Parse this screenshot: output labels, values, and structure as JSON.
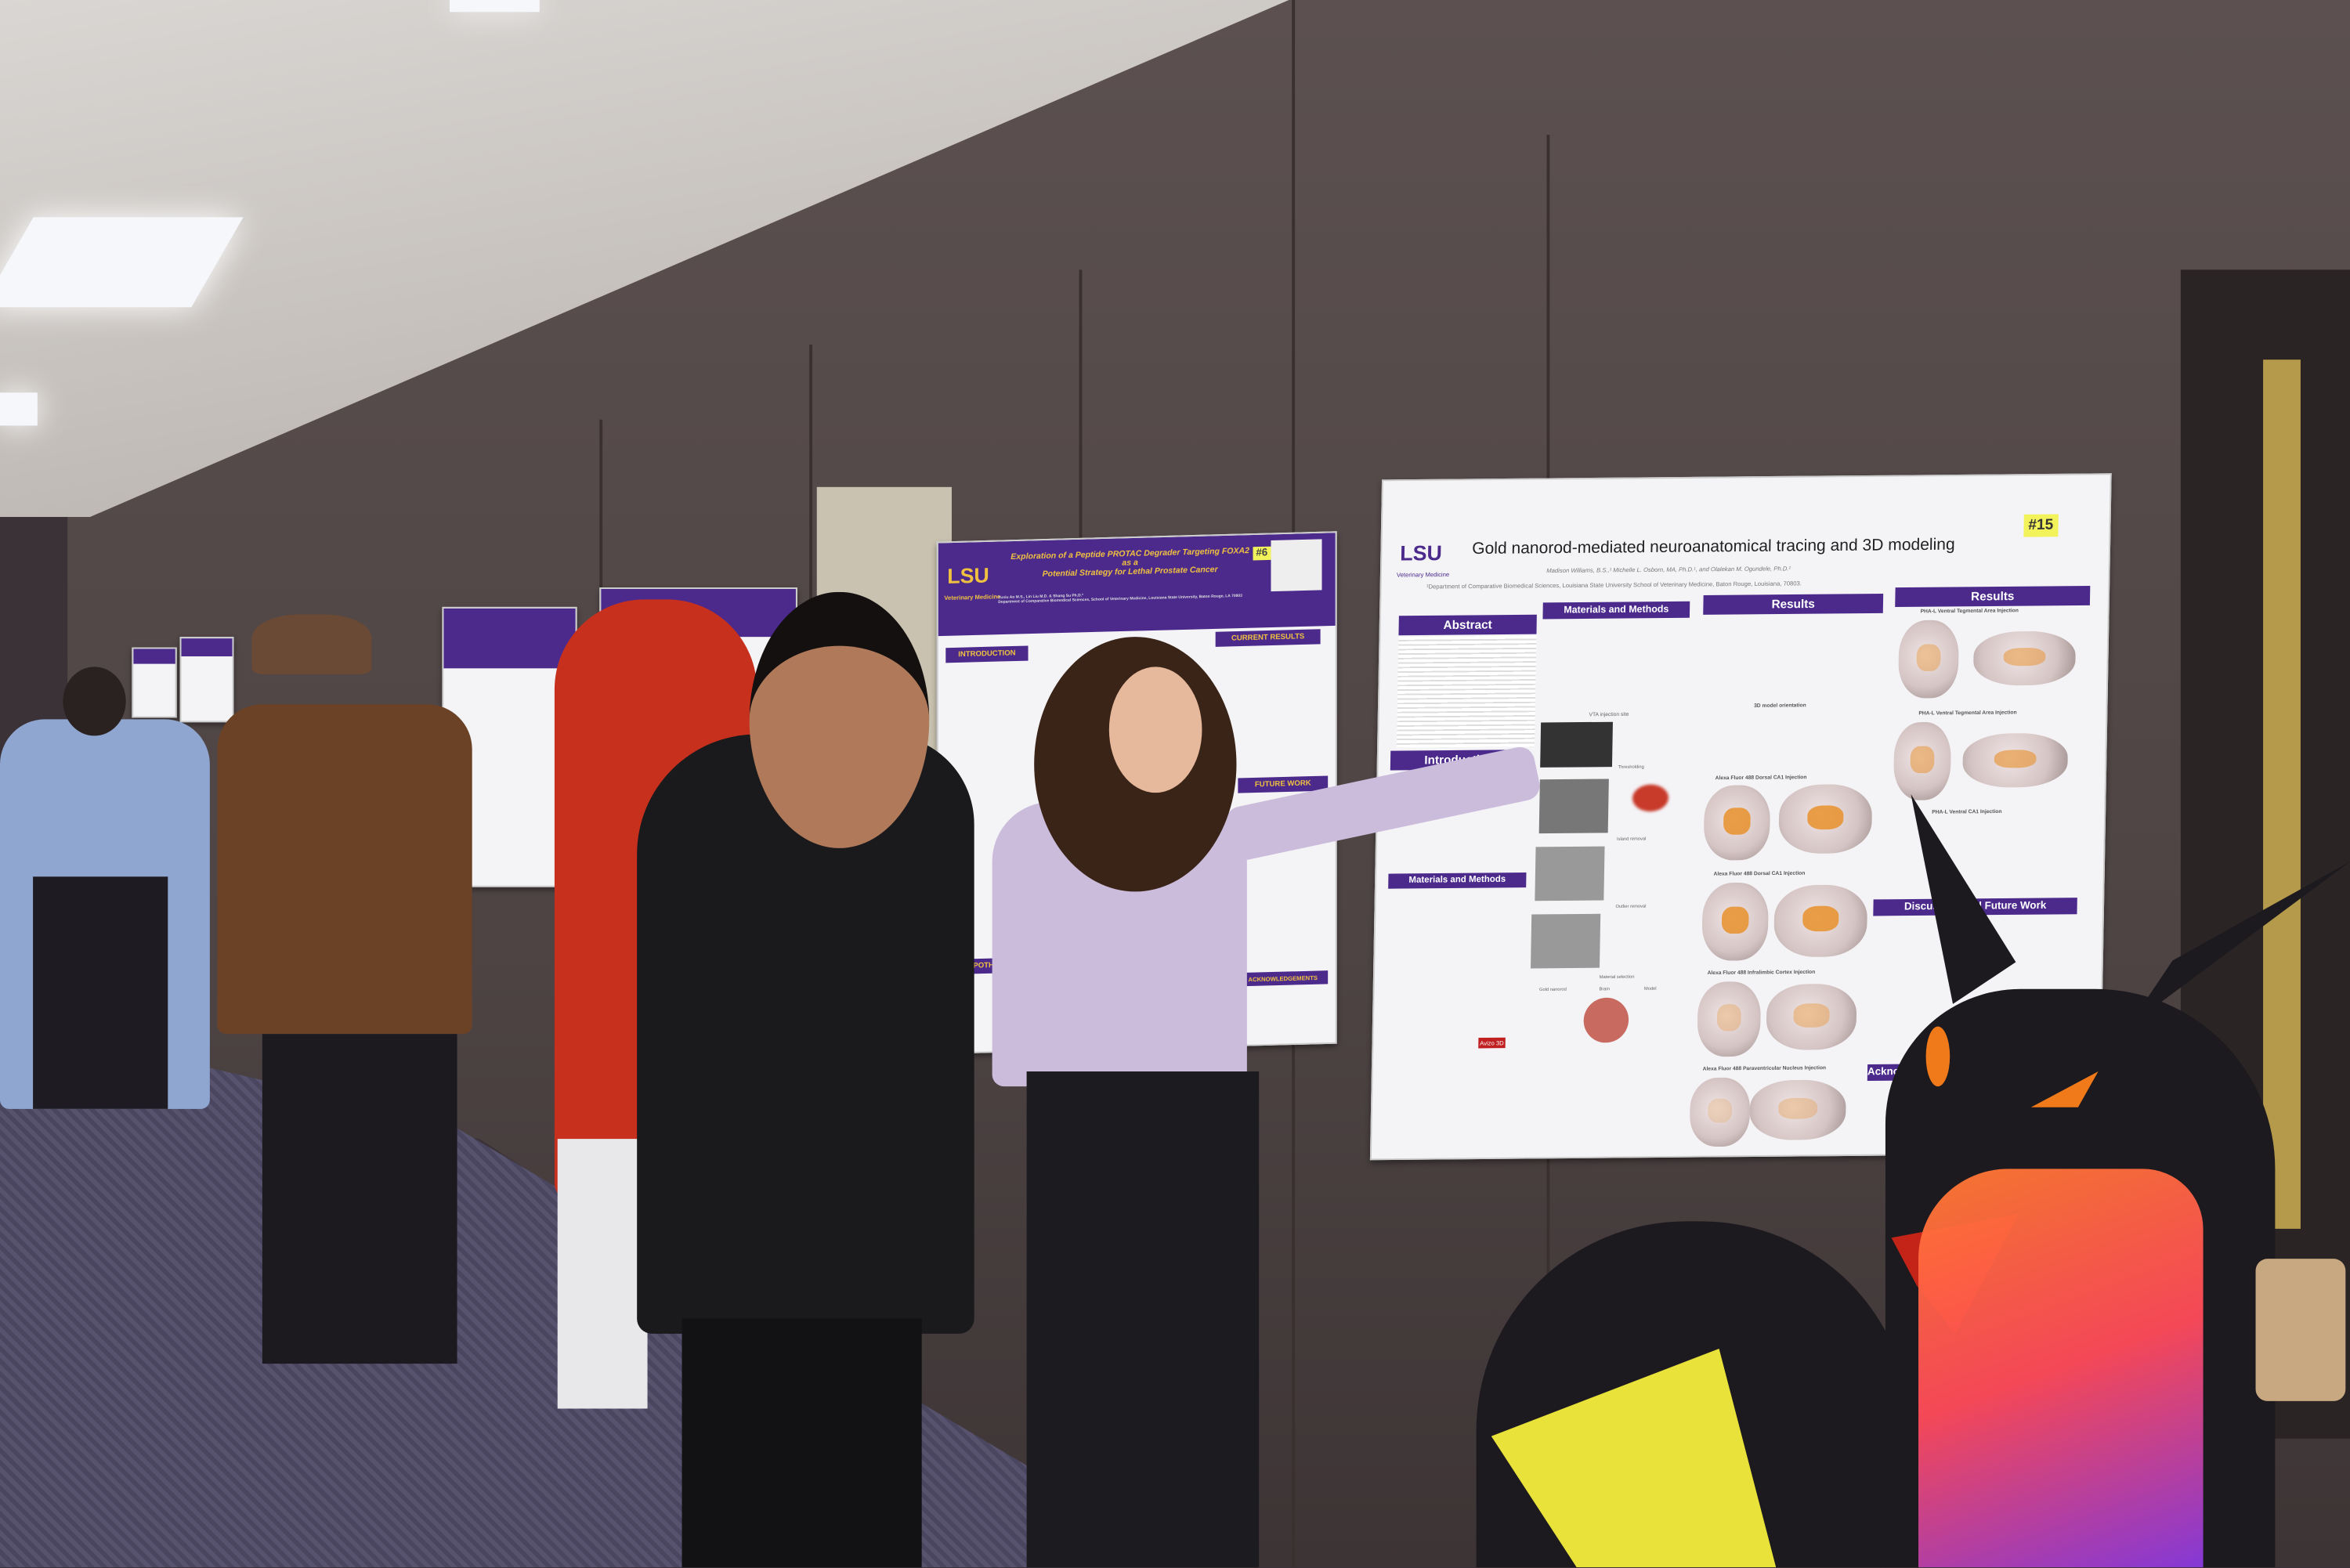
{
  "scene": {
    "description_free": true,
    "colors": {
      "wall": "#514646",
      "ceiling": "#cfcac6",
      "carpet": "#504c67",
      "lsu_purple": "#4b2a8c",
      "lsu_gold": "#f0c040",
      "sticky_note": "#f2f25a"
    }
  },
  "main_poster": {
    "logo": "LSU",
    "logo_sub": "Veterinary Medicine",
    "title": "Gold nanorod-mediated neuroanatomical tracing and 3D modeling",
    "number": "#15",
    "authors": "Madison Williams, B.S.,¹ Michelle L. Osborn, MA, Ph.D.¹, and Olalekan M. Ogundele, Ph.D.¹",
    "affiliation": "¹Department of Comparative Biomedical Sciences, Louisiana State University School of Veterinary Medicine, Baton Rouge, Louisiana, 70803.",
    "sections": {
      "abstract": "Abstract",
      "materials": "Materials and Methods",
      "results1": "Results",
      "results2": "Results",
      "introduction": "Introduction",
      "methods2": "Materials and Methods",
      "discussion": "Discussion and Future Work",
      "ack": "Acknowledgements"
    },
    "figure_labels": {
      "vta_site": "VTA injection site",
      "orientation": "3D model orientation",
      "thresholding": "Thresholding",
      "island_removal": "Island removal",
      "outlier_removal": "Outlier removal",
      "material_selection": "Material selection",
      "gold_nanorod": "Gold nanorod",
      "brain": "Brain",
      "model": "Model",
      "avizo": "Avizo 3D",
      "r1": "Alexa Fluor 488 Dorsal CA1 Injection",
      "r2": "Alexa Fluor 488 Dorsal CA1 Injection",
      "r3": "Alexa Fluor 488 Infralimbic Cortex Injection",
      "r4": "Alexa Fluor 488 Paraventricular Nucleus Injection",
      "r5": "PHA-L Ventral Tegmental Area Injection",
      "r6": "PHA-L Ventral Tegmental Area Injection",
      "r7": "PHA-L Ventral CA1 Injection"
    }
  },
  "protac_poster": {
    "logo": "LSU",
    "logo_sub": "Veterinary Medicine",
    "title_line1": "Exploration of a Peptide PROTAC Degrader Targeting FOXA2 as a",
    "title_line2": "Potential Strategy for Lethal Prostate Cancer",
    "number": "#6",
    "authors": "Yuxiu Ao M.S., Lin Liu M.D. & Shang Su Ph.D.*",
    "affiliation": "Department of Comparative Biomedical Sciences, School of Veterinary Medicine, Louisiana State University, Baton Rouge, LA 70803",
    "sections": {
      "introduction": "INTRODUCTION",
      "current_results": "CURRENT RESULTS",
      "future_work": "FUTURE WORK",
      "hypothesis": "HYPOTHESIS",
      "acknowledgements": "ACKNOWLEDGEMENTS"
    }
  }
}
